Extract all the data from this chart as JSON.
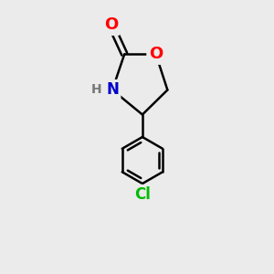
{
  "background_color": "#ebebeb",
  "bond_color": "#000000",
  "bond_width": 1.8,
  "atom_colors": {
    "O": "#ff0000",
    "N": "#0000cc",
    "Cl": "#00bb00",
    "C": "#000000"
  },
  "font_size": 11,
  "fig_size": [
    3.0,
    3.0
  ],
  "dpi": 100,
  "xlim": [
    -2.2,
    2.2
  ],
  "ylim": [
    -3.8,
    2.2
  ]
}
